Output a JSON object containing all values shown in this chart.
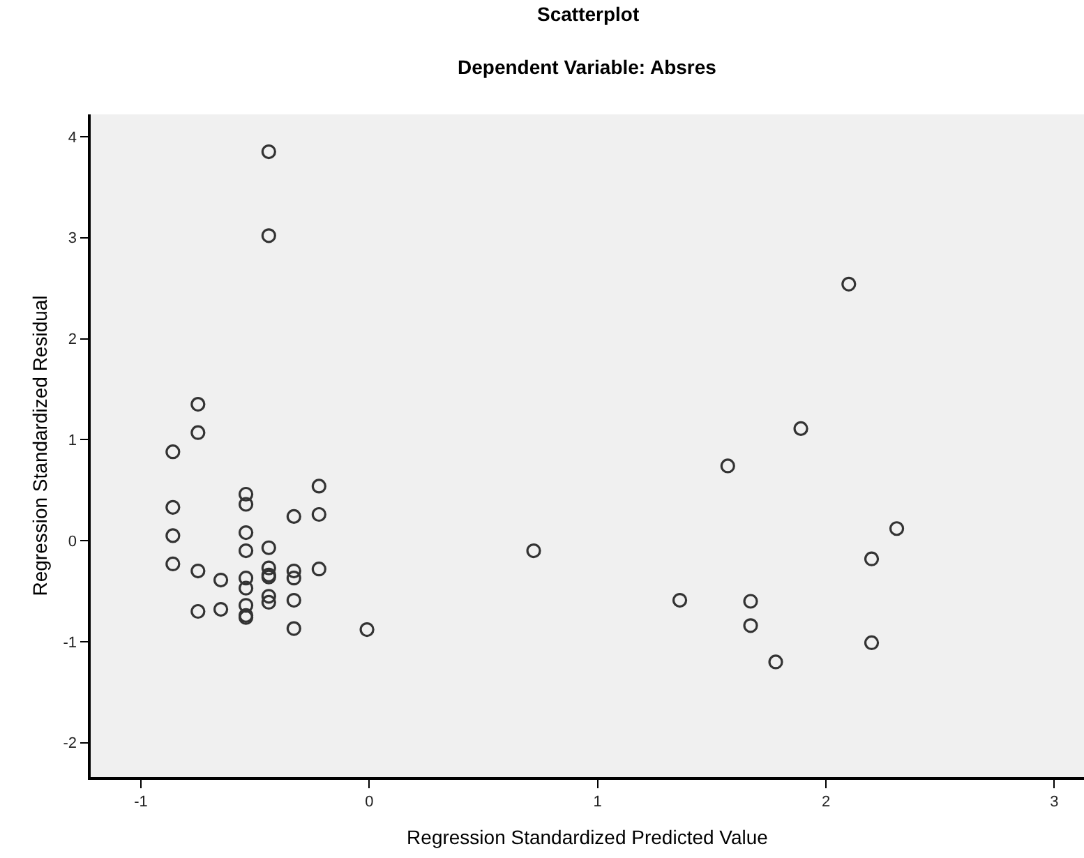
{
  "chart_data": {
    "type": "scatter",
    "title": "Scatterplot",
    "subtitle": "Dependent Variable: Absres",
    "xlabel": "Regression Standardized Predicted Value",
    "ylabel": "Regression Standardized Residual",
    "x": [
      -0.86,
      -0.86,
      -0.86,
      -0.86,
      -0.75,
      -0.75,
      -0.75,
      -0.75,
      -0.65,
      -0.65,
      -0.54,
      -0.54,
      -0.54,
      -0.54,
      -0.54,
      -0.54,
      -0.54,
      -0.54,
      -0.54,
      -0.44,
      -0.44,
      -0.44,
      -0.44,
      -0.44,
      -0.44,
      -0.44,
      -0.44,
      -0.33,
      -0.33,
      -0.33,
      -0.33,
      -0.33,
      -0.22,
      -0.22,
      -0.22,
      -0.01,
      0.72,
      1.36,
      1.57,
      1.67,
      1.67,
      1.78,
      1.89,
      2.1,
      2.2,
      2.2,
      2.31
    ],
    "values": [
      0.88,
      0.33,
      0.05,
      -0.23,
      1.35,
      1.07,
      -0.3,
      -0.7,
      -0.39,
      -0.68,
      0.46,
      0.36,
      0.08,
      -0.1,
      -0.37,
      -0.47,
      -0.64,
      -0.74,
      -0.76,
      3.85,
      3.02,
      -0.07,
      -0.27,
      -0.34,
      -0.36,
      -0.55,
      -0.61,
      0.24,
      -0.3,
      -0.37,
      -0.59,
      -0.87,
      0.54,
      0.26,
      -0.28,
      -0.88,
      -0.1,
      -0.59,
      0.74,
      -0.6,
      -0.84,
      -1.2,
      1.11,
      2.54,
      -0.18,
      -1.01,
      0.12
    ],
    "color": "#333333",
    "marker": "circle",
    "xlim": [
      -1.22,
      3.13
    ],
    "ylim": [
      -2.34,
      4.22
    ],
    "xticks": [
      -1,
      0,
      1,
      2,
      3
    ],
    "yticks": [
      -2,
      -1,
      0,
      1,
      2,
      3,
      4
    ],
    "grid": false
  }
}
